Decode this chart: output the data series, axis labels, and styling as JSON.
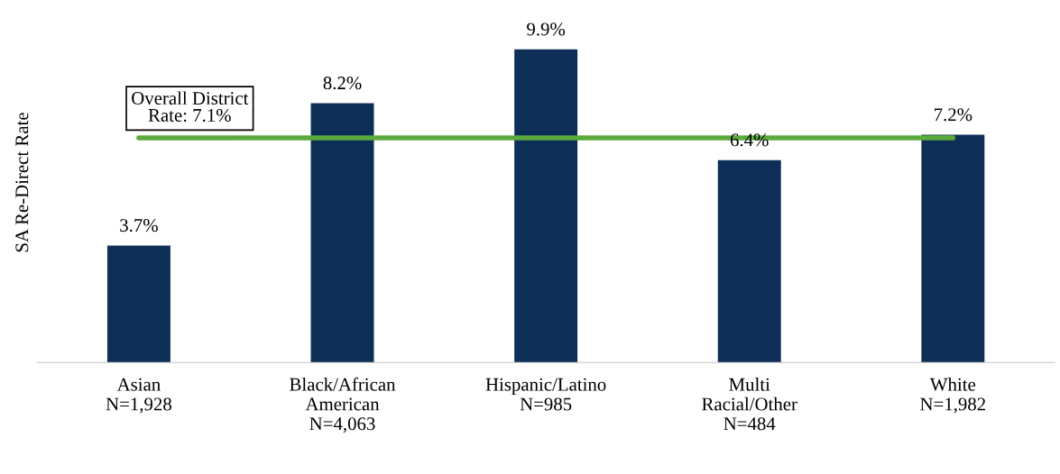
{
  "chart_data": {
    "type": "bar",
    "ylabel": "SA Re-Direct Rate",
    "categories": [
      "Asian\nN=1,928",
      "Black/African\nAmerican\nN=4,063",
      "Hispanic/Latino\nN=985",
      "Multi\nRacial/Other\nN=484",
      "White\nN=1,982"
    ],
    "values": [
      3.7,
      8.2,
      9.9,
      6.4,
      7.2
    ],
    "value_labels": [
      "3.7%",
      "8.2%",
      "9.9%",
      "6.4%",
      "7.2%"
    ],
    "color": "#0d2f57",
    "tick_labels": "x",
    "grid": false,
    "ref_lines": [
      {
        "axis": "y",
        "value": 7.1,
        "label": "Overall District\nRate: 7.1%",
        "color": "#5aaa3c",
        "line_style": "solid"
      }
    ]
  }
}
